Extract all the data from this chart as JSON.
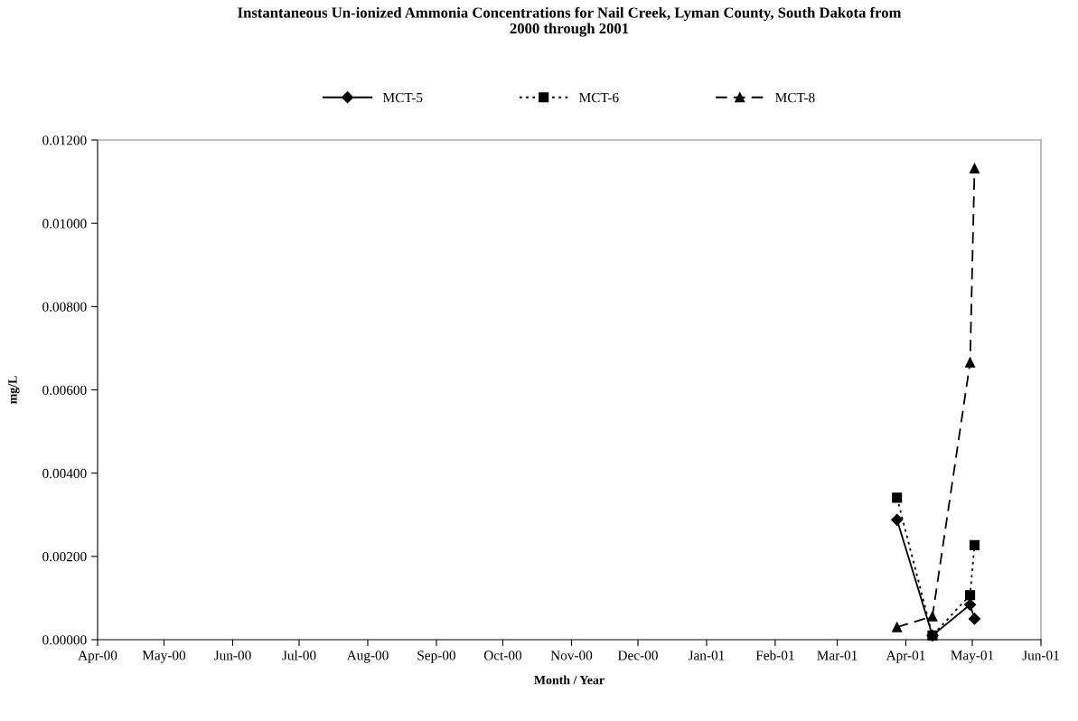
{
  "chart_data": {
    "type": "line",
    "title": "Instantaneous Un-ionized Ammonia Concentrations for Nail Creek, Lyman County, South Dakota from\n2000 through 2001",
    "xlabel": "Month / Year",
    "ylabel": "mg/L",
    "series": [
      {
        "name": "MCT-5",
        "color": "#000000",
        "marker": "diamond",
        "line_style": "solid",
        "x": [
          "2001-03-28",
          "2001-04-13",
          "2001-04-30",
          "2001-05-02"
        ],
        "values": [
          0.00288,
          0.0001,
          0.00084,
          0.0005
        ]
      },
      {
        "name": "MCT-6",
        "color": "#000000",
        "marker": "square",
        "line_style": "dotted",
        "x": [
          "2001-03-28",
          "2001-04-13",
          "2001-04-30",
          "2001-05-02"
        ],
        "values": [
          0.00341,
          0.0001,
          0.00107,
          0.00227
        ]
      },
      {
        "name": "MCT-8",
        "color": "#000000",
        "marker": "triangle",
        "line_style": "dashed",
        "x": [
          "2001-03-28",
          "2001-04-13",
          "2001-04-30",
          "2001-05-02"
        ],
        "values": [
          0.0003,
          0.00056,
          0.00666,
          0.01132
        ]
      }
    ],
    "xlim": [
      "2000-04-01",
      "2001-06-01"
    ],
    "xticks": [
      {
        "value": "2000-04-01",
        "label": "Apr-00"
      },
      {
        "value": "2000-05-01",
        "label": "May-00"
      },
      {
        "value": "2000-06-01",
        "label": "Jun-00"
      },
      {
        "value": "2000-07-01",
        "label": "Jul-00"
      },
      {
        "value": "2000-08-01",
        "label": "Aug-00"
      },
      {
        "value": "2000-09-01",
        "label": "Sep-00"
      },
      {
        "value": "2000-10-01",
        "label": "Oct-00"
      },
      {
        "value": "2000-11-01",
        "label": "Nov-00"
      },
      {
        "value": "2000-12-01",
        "label": "Dec-00"
      },
      {
        "value": "2001-01-01",
        "label": "Jan-01"
      },
      {
        "value": "2001-02-01",
        "label": "Feb-01"
      },
      {
        "value": "2001-03-01",
        "label": "Mar-01"
      },
      {
        "value": "2001-04-01",
        "label": "Apr-01"
      },
      {
        "value": "2001-05-01",
        "label": "May-01"
      },
      {
        "value": "2001-06-01",
        "label": "Jun-01"
      }
    ],
    "ylim": [
      0,
      0.012
    ],
    "yticks": [
      {
        "value": 0,
        "label": "0.00000"
      },
      {
        "value": 0.002,
        "label": "0.00200"
      },
      {
        "value": 0.004,
        "label": "0.00400"
      },
      {
        "value": 0.006,
        "label": "0.00600"
      },
      {
        "value": 0.008,
        "label": "0.00800"
      },
      {
        "value": 0.01,
        "label": "0.01000"
      },
      {
        "value": 0.012,
        "label": "0.01200"
      }
    ],
    "grid": false,
    "legend": "top"
  }
}
